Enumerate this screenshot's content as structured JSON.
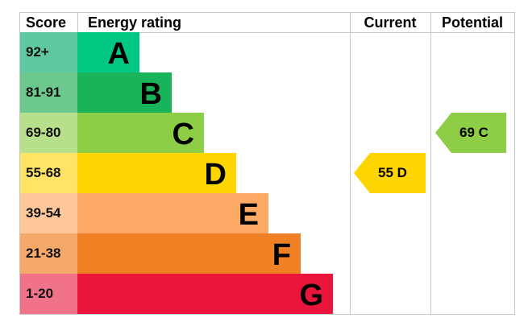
{
  "chart_data": {
    "type": "bar",
    "headers": {
      "score": "Score",
      "rating": "Energy rating",
      "current": "Current",
      "potential": "Potential"
    },
    "bands": [
      {
        "letter": "A",
        "range": "92+",
        "color": "#00c781",
        "score_color": "#5fc8a0"
      },
      {
        "letter": "B",
        "range": "81-91",
        "color": "#19b459",
        "score_color": "#6cc88c"
      },
      {
        "letter": "C",
        "range": "69-80",
        "color": "#8dce46",
        "score_color": "#b8df8b"
      },
      {
        "letter": "D",
        "range": "55-68",
        "color": "#ffd500",
        "score_color": "#ffe366"
      },
      {
        "letter": "E",
        "range": "39-54",
        "color": "#fcaa65",
        "score_color": "#fdc79a"
      },
      {
        "letter": "F",
        "range": "21-38",
        "color": "#ef8023",
        "score_color": "#f5a86a"
      },
      {
        "letter": "G",
        "range": "1-20",
        "color": "#e9153b",
        "score_color": "#f07389"
      }
    ],
    "current": {
      "value": 55,
      "letter": "D",
      "label": "55  D",
      "color": "#ffd500"
    },
    "potential": {
      "value": 69,
      "letter": "C",
      "label": "69  C",
      "color": "#8dce46"
    }
  }
}
